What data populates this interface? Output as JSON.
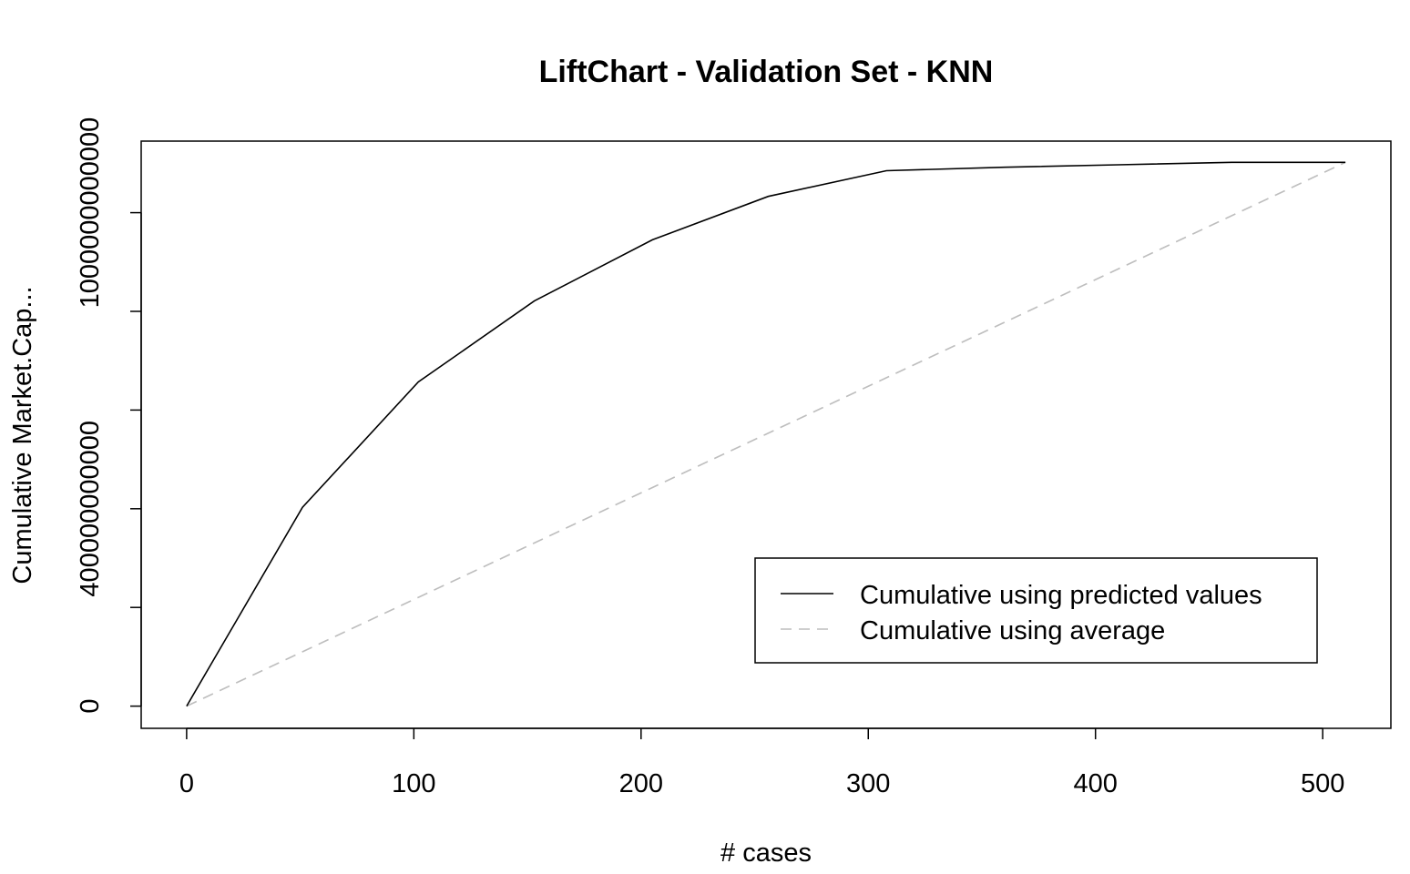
{
  "chart_data": {
    "type": "line",
    "title": "LiftChart - Validation Set - KNN",
    "xlabel": "# cases",
    "ylabel": "Cumulative Market.Cap...",
    "xlim": [
      -20,
      530
    ],
    "ylim": [
      -45000000000,
      1145000000000
    ],
    "xticks": [
      0,
      100,
      200,
      300,
      400,
      500
    ],
    "xtick_labels": [
      "0",
      "100",
      "200",
      "300",
      "400",
      "500"
    ],
    "yticks": [
      0,
      200000000000,
      400000000000,
      600000000000,
      800000000000,
      1000000000000
    ],
    "ytick_labels": [
      "0",
      "400000000000",
      "1000000000000"
    ],
    "ytick_label_values": [
      0,
      400000000000,
      1000000000000
    ],
    "series": [
      {
        "name": "Cumulative using predicted values",
        "color": "#000000",
        "dash": "solid",
        "x": [
          0,
          51,
          102,
          153,
          205,
          256,
          308,
          360,
          410,
          460,
          510
        ],
        "y": [
          0,
          403000000000,
          657000000000,
          821000000000,
          945000000000,
          1033000000000,
          1085000000000,
          1092000000000,
          1097000000000,
          1102000000000,
          1102000000000
        ]
      },
      {
        "name": "Cumulative using average",
        "color": "#bebebe",
        "dash": "dashed",
        "x": [
          0,
          510
        ],
        "y": [
          0,
          1102000000000
        ]
      }
    ],
    "grid": false,
    "legend_position": "bottom-right"
  }
}
